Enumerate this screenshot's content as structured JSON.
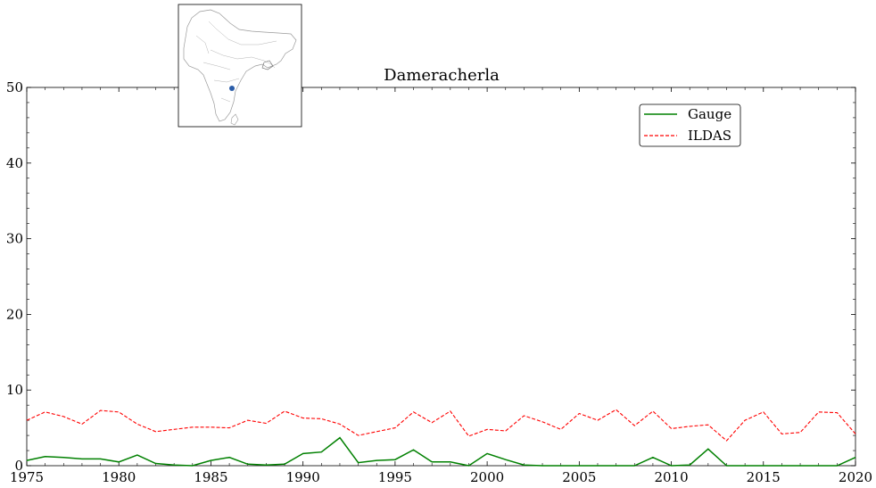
{
  "chart_data": {
    "type": "line",
    "title": "Dameracherla",
    "xlabel": "",
    "ylabel": "",
    "xlim": [
      1975,
      2020
    ],
    "ylim": [
      0,
      50
    ],
    "x_ticks": [
      "1975",
      "1980",
      "1985",
      "1990",
      "1995",
      "2000",
      "2005",
      "2010",
      "2015",
      "2020"
    ],
    "y_ticks": [
      "0",
      "10",
      "20",
      "30",
      "40",
      "50"
    ],
    "legend_position": "top-right",
    "grid": false,
    "x": [
      1975,
      1976,
      1977,
      1978,
      1979,
      1980,
      1981,
      1982,
      1983,
      1984,
      1985,
      1986,
      1987,
      1988,
      1989,
      1990,
      1991,
      1992,
      1993,
      1994,
      1995,
      1996,
      1997,
      1998,
      1999,
      2000,
      2001,
      2002,
      2003,
      2004,
      2005,
      2006,
      2007,
      2008,
      2009,
      2010,
      2011,
      2012,
      2013,
      2014,
      2015,
      2016,
      2017,
      2018,
      2019,
      2020
    ],
    "series": [
      {
        "name": "Gauge",
        "color": "#008000",
        "style": "solid",
        "values": [
          0.7,
          1.2,
          1.1,
          0.9,
          0.9,
          0.5,
          1.4,
          0.3,
          0.1,
          0.0,
          0.7,
          1.1,
          0.2,
          0.1,
          0.2,
          1.6,
          1.8,
          3.7,
          0.4,
          0.7,
          0.8,
          2.1,
          0.5,
          0.5,
          0.0,
          1.6,
          0.8,
          0.1,
          0.0,
          0.0,
          0.0,
          0.0,
          0.0,
          0.0,
          1.1,
          0.0,
          0.1,
          2.2,
          0.0,
          0.0,
          0.0,
          0.0,
          0.0,
          0.0,
          0.0,
          1.1
        ]
      },
      {
        "name": "ILDAS",
        "color": "#ff0000",
        "style": "dashed",
        "values": [
          6.0,
          7.1,
          6.5,
          5.5,
          7.3,
          7.1,
          5.5,
          4.5,
          4.8,
          5.1,
          5.1,
          5.0,
          6.0,
          5.6,
          7.2,
          6.3,
          6.2,
          5.5,
          4.0,
          4.5,
          5.0,
          7.1,
          5.7,
          7.2,
          3.9,
          4.8,
          4.6,
          6.6,
          5.8,
          4.8,
          6.9,
          6.0,
          7.4,
          5.3,
          7.2,
          4.9,
          5.2,
          5.4,
          3.3,
          6.0,
          7.1,
          4.2,
          4.4,
          7.1,
          7.0,
          4.2
        ]
      }
    ]
  },
  "inset_map": {
    "marker_color": "#2a5ca8"
  }
}
